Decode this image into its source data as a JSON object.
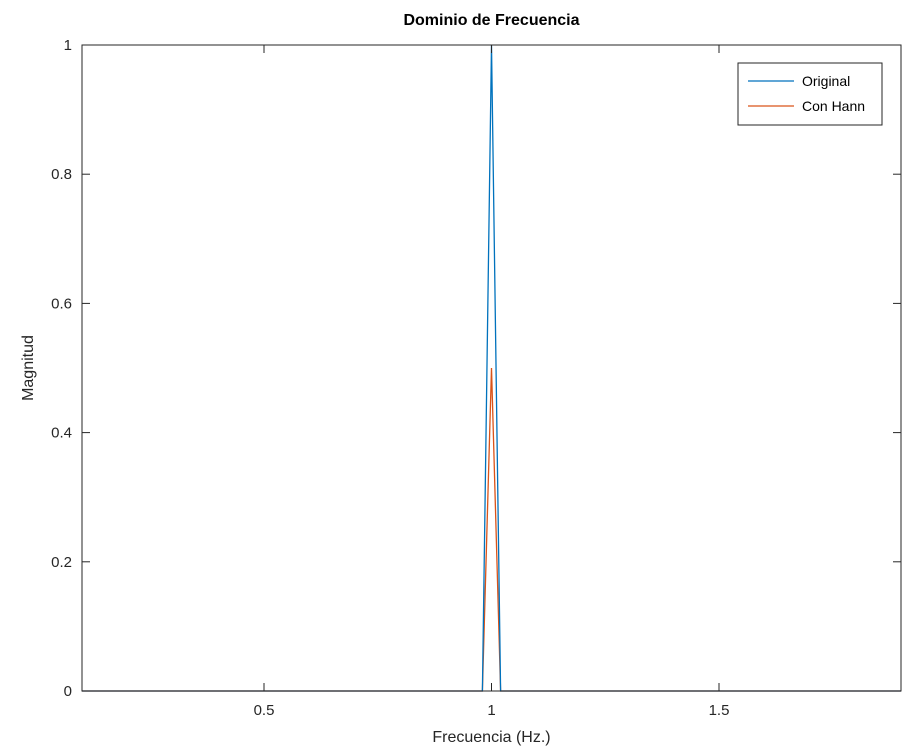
{
  "chart_data": {
    "type": "line",
    "title": "Dominio de Frecuencia",
    "xlabel": "Frecuencia (Hz.)",
    "ylabel": "Magnitud",
    "xlim": [
      0.1,
      1.9
    ],
    "ylim": [
      0,
      1
    ],
    "x_ticks": [
      0.5,
      1,
      1.5
    ],
    "x_tick_labels": [
      "0.5",
      "1",
      "1.5"
    ],
    "y_ticks": [
      0,
      0.2,
      0.4,
      0.6,
      0.8,
      1
    ],
    "y_tick_labels": [
      "0",
      "0.2",
      "0.4",
      "0.6",
      "0.8",
      "1"
    ],
    "grid": false,
    "legend_position": "top-right",
    "series": [
      {
        "name": "Original",
        "color": "#0072BD",
        "x": [
          0.1,
          0.98,
          1.0,
          1.02,
          1.9
        ],
        "y": [
          0,
          0,
          1,
          0,
          0
        ]
      },
      {
        "name": "Con Hann",
        "color": "#D95319",
        "x": [
          0.1,
          0.98,
          1.0,
          1.02,
          1.9
        ],
        "y": [
          0,
          0,
          0.5,
          0,
          0
        ]
      }
    ]
  }
}
